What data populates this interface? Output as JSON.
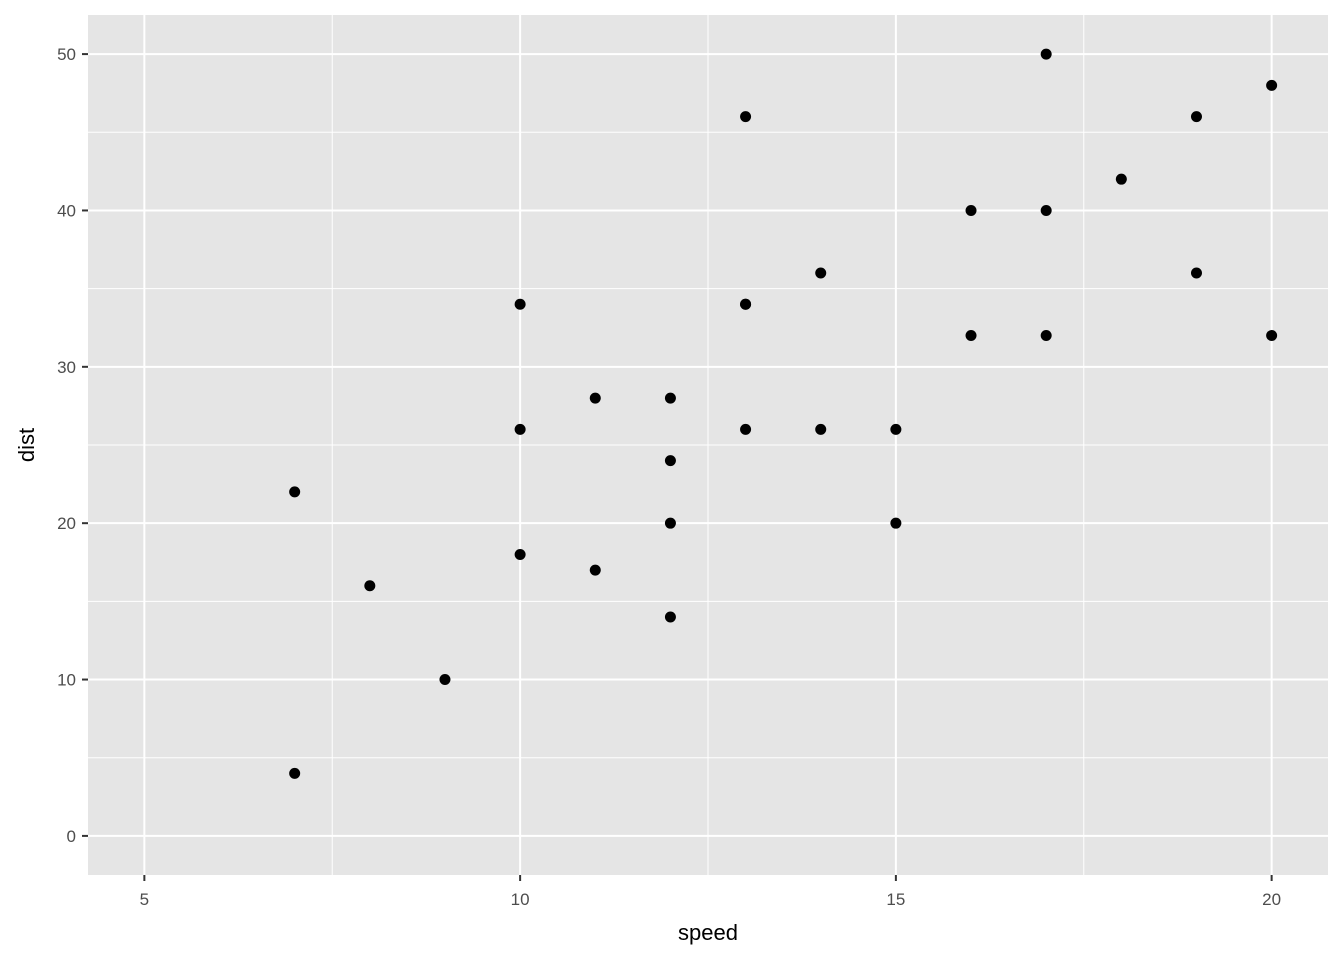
{
  "chart_data": {
    "type": "scatter",
    "title": "",
    "xlabel": "speed",
    "ylabel": "dist",
    "xlim": [
      5,
      20
    ],
    "ylim": [
      0,
      50
    ],
    "xticks": [
      5,
      10,
      15,
      20
    ],
    "yticks": [
      0,
      10,
      20,
      30,
      40,
      50
    ],
    "grid": true,
    "colors": {
      "panel": "#E5E5E5",
      "grid": "#FFFFFF",
      "point": "#000000",
      "tick_text": "#4D4D4D"
    },
    "points": [
      {
        "x": 7,
        "y": 4
      },
      {
        "x": 7,
        "y": 22
      },
      {
        "x": 8,
        "y": 16
      },
      {
        "x": 9,
        "y": 10
      },
      {
        "x": 10,
        "y": 18
      },
      {
        "x": 10,
        "y": 26
      },
      {
        "x": 10,
        "y": 34
      },
      {
        "x": 11,
        "y": 17
      },
      {
        "x": 11,
        "y": 28
      },
      {
        "x": 12,
        "y": 14
      },
      {
        "x": 12,
        "y": 20
      },
      {
        "x": 12,
        "y": 24
      },
      {
        "x": 12,
        "y": 28
      },
      {
        "x": 13,
        "y": 26
      },
      {
        "x": 13,
        "y": 34
      },
      {
        "x": 13,
        "y": 34
      },
      {
        "x": 13,
        "y": 46
      },
      {
        "x": 14,
        "y": 26
      },
      {
        "x": 14,
        "y": 36
      },
      {
        "x": 15,
        "y": 20
      },
      {
        "x": 15,
        "y": 26
      },
      {
        "x": 16,
        "y": 32
      },
      {
        "x": 16,
        "y": 40
      },
      {
        "x": 17,
        "y": 32
      },
      {
        "x": 17,
        "y": 40
      },
      {
        "x": 17,
        "y": 50
      },
      {
        "x": 18,
        "y": 42
      },
      {
        "x": 19,
        "y": 36
      },
      {
        "x": 19,
        "y": 46
      },
      {
        "x": 20,
        "y": 32
      },
      {
        "x": 20,
        "y": 48
      }
    ]
  }
}
